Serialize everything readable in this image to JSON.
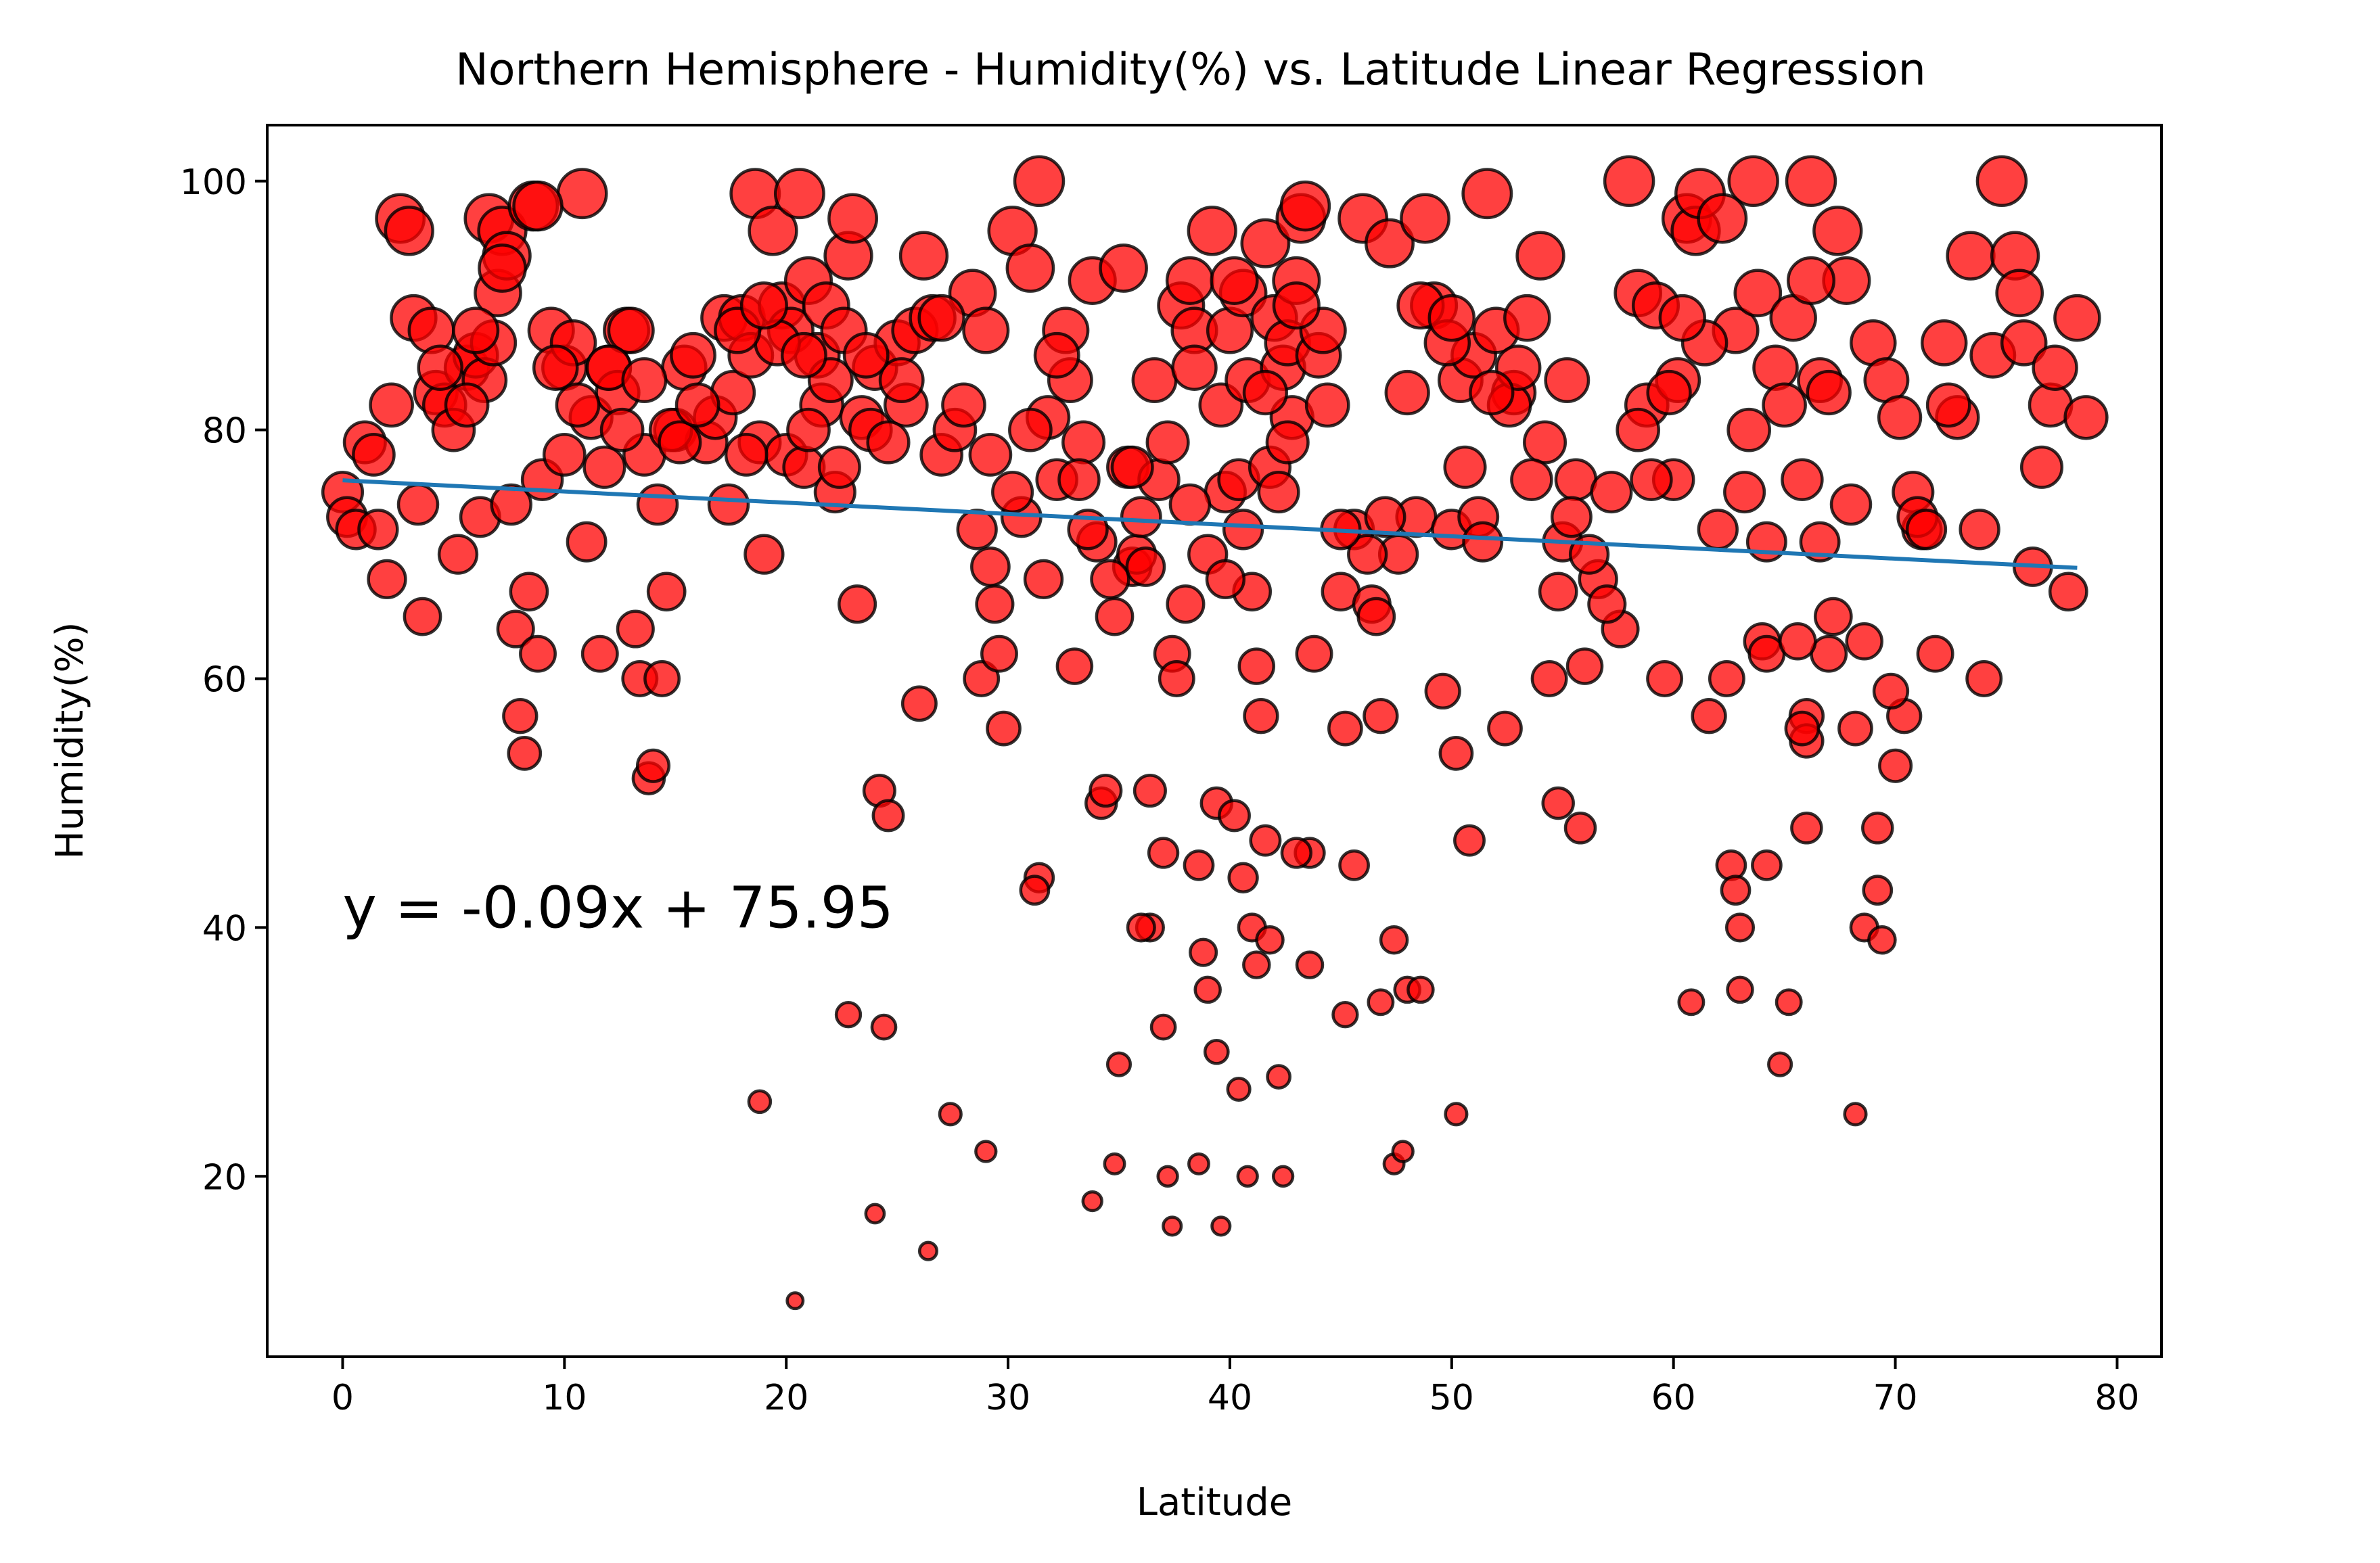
{
  "chart_data": {
    "type": "scatter",
    "title": "Northern Hemisphere - Humidity(%) vs. Latitude Linear Regression",
    "xlabel": "Latitude",
    "ylabel": "Humidity(%)",
    "xlim": [
      -3.4,
      82
    ],
    "ylim": [
      5.5,
      104.5
    ],
    "xticks": [
      0,
      10,
      20,
      30,
      40,
      50,
      60,
      70,
      80
    ],
    "yticks": [
      20,
      40,
      60,
      80,
      100
    ],
    "grid": false,
    "legend": "none",
    "point_style": {
      "fill": "#ff0000",
      "fill_opacity": 0.75,
      "edge": "#000000",
      "size_encoding": "humidity"
    },
    "regression": {
      "slope": -0.09,
      "intercept": 75.95,
      "x_range": [
        0,
        78.2
      ],
      "color": "#1f77b4"
    },
    "annotation": {
      "text": "y = -0.09x + 75.95",
      "x": 0,
      "y": 40,
      "color": "#ff0000"
    },
    "points": [
      [
        0.0,
        75
      ],
      [
        0.2,
        73
      ],
      [
        0.6,
        72
      ],
      [
        1.0,
        79
      ],
      [
        1.4,
        78
      ],
      [
        1.6,
        72
      ],
      [
        2.0,
        68
      ],
      [
        2.2,
        82
      ],
      [
        2.6,
        97
      ],
      [
        3.0,
        96
      ],
      [
        3.2,
        89
      ],
      [
        3.4,
        74
      ],
      [
        3.6,
        65
      ],
      [
        4.0,
        88
      ],
      [
        4.2,
        83
      ],
      [
        4.6,
        82
      ],
      [
        5.0,
        80
      ],
      [
        5.2,
        70
      ],
      [
        5.6,
        85
      ],
      [
        6.0,
        86
      ],
      [
        6.2,
        73
      ],
      [
        6.4,
        84
      ],
      [
        6.6,
        97
      ],
      [
        6.8,
        87
      ],
      [
        7.0,
        91
      ],
      [
        7.2,
        96
      ],
      [
        7.4,
        94
      ],
      [
        7.6,
        74
      ],
      [
        7.8,
        64
      ],
      [
        8.0,
        57
      ],
      [
        8.2,
        54
      ],
      [
        8.4,
        67
      ],
      [
        8.6,
        98
      ],
      [
        8.8,
        62
      ],
      [
        9.0,
        76
      ],
      [
        9.4,
        88
      ],
      [
        10.0,
        85
      ],
      [
        10.4,
        87
      ],
      [
        10.8,
        99
      ],
      [
        11.0,
        71
      ],
      [
        11.2,
        81
      ],
      [
        11.6,
        62
      ],
      [
        11.8,
        77
      ],
      [
        12.0,
        85
      ],
      [
        12.4,
        83
      ],
      [
        12.8,
        88
      ],
      [
        13.0,
        88
      ],
      [
        13.2,
        64
      ],
      [
        13.4,
        60
      ],
      [
        13.6,
        78
      ],
      [
        13.8,
        52
      ],
      [
        14.0,
        53
      ],
      [
        14.2,
        74
      ],
      [
        14.4,
        60
      ],
      [
        14.6,
        67
      ],
      [
        15.0,
        80
      ],
      [
        15.4,
        85
      ],
      [
        15.8,
        86
      ],
      [
        16.4,
        79
      ],
      [
        16.8,
        81
      ],
      [
        17.2,
        89
      ],
      [
        17.4,
        74
      ],
      [
        17.6,
        83
      ],
      [
        18.0,
        89
      ],
      [
        18.4,
        86
      ],
      [
        18.6,
        99
      ],
      [
        18.8,
        79
      ],
      [
        19.0,
        70
      ],
      [
        19.4,
        96
      ],
      [
        19.8,
        90
      ],
      [
        20.0,
        78
      ],
      [
        20.2,
        88
      ],
      [
        20.6,
        99
      ],
      [
        20.8,
        77
      ],
      [
        21.0,
        92
      ],
      [
        21.4,
        86
      ],
      [
        21.6,
        82
      ],
      [
        21.8,
        90
      ],
      [
        22.0,
        84
      ],
      [
        22.2,
        75
      ],
      [
        22.6,
        88
      ],
      [
        22.8,
        94
      ],
      [
        23.0,
        97
      ],
      [
        23.2,
        66
      ],
      [
        23.4,
        81
      ],
      [
        23.8,
        80
      ],
      [
        24.0,
        85
      ],
      [
        24.2,
        51
      ],
      [
        24.6,
        49
      ],
      [
        25.0,
        87
      ],
      [
        25.4,
        82
      ],
      [
        25.8,
        88
      ],
      [
        26.0,
        58
      ],
      [
        26.2,
        94
      ],
      [
        26.6,
        89
      ],
      [
        27.0,
        78
      ],
      [
        27.6,
        80
      ],
      [
        28.0,
        82
      ],
      [
        28.4,
        91
      ],
      [
        28.6,
        72
      ],
      [
        28.8,
        60
      ],
      [
        29.0,
        88
      ],
      [
        29.2,
        69
      ],
      [
        29.4,
        66
      ],
      [
        29.6,
        62
      ],
      [
        29.8,
        56
      ],
      [
        30.2,
        96
      ],
      [
        30.6,
        73
      ],
      [
        31.0,
        93
      ],
      [
        31.4,
        100
      ],
      [
        31.6,
        68
      ],
      [
        31.8,
        81
      ],
      [
        32.2,
        76
      ],
      [
        32.6,
        88
      ],
      [
        32.8,
        84
      ],
      [
        33.0,
        61
      ],
      [
        33.4,
        79
      ],
      [
        33.8,
        92
      ],
      [
        34.0,
        71
      ],
      [
        34.2,
        50
      ],
      [
        34.4,
        51
      ],
      [
        34.8,
        65
      ],
      [
        35.2,
        93
      ],
      [
        35.4,
        77
      ],
      [
        35.6,
        69
      ],
      [
        35.8,
        70
      ],
      [
        36.0,
        73
      ],
      [
        36.4,
        51
      ],
      [
        36.8,
        76
      ],
      [
        37.0,
        46
      ],
      [
        37.2,
        79
      ],
      [
        37.4,
        62
      ],
      [
        37.6,
        60
      ],
      [
        37.8,
        90
      ],
      [
        38.0,
        66
      ],
      [
        38.2,
        92
      ],
      [
        38.4,
        88
      ],
      [
        38.6,
        45
      ],
      [
        38.8,
        38
      ],
      [
        39.0,
        35
      ],
      [
        39.2,
        96
      ],
      [
        39.4,
        50
      ],
      [
        39.6,
        82
      ],
      [
        39.8,
        75
      ],
      [
        40.0,
        88
      ],
      [
        40.2,
        49
      ],
      [
        40.4,
        76
      ],
      [
        40.6,
        91
      ],
      [
        40.8,
        84
      ],
      [
        41.0,
        67
      ],
      [
        41.2,
        61
      ],
      [
        41.4,
        57
      ],
      [
        41.6,
        95
      ],
      [
        41.8,
        77
      ],
      [
        42.0,
        89
      ],
      [
        42.2,
        75
      ],
      [
        42.4,
        85
      ],
      [
        42.6,
        87
      ],
      [
        42.8,
        81
      ],
      [
        43.0,
        92
      ],
      [
        43.2,
        97
      ],
      [
        43.4,
        98
      ],
      [
        43.6,
        46
      ],
      [
        43.8,
        62
      ],
      [
        44.0,
        86
      ],
      [
        44.4,
        82
      ],
      [
        45.0,
        67
      ],
      [
        45.2,
        56
      ],
      [
        45.6,
        72
      ],
      [
        46.0,
        97
      ],
      [
        46.4,
        66
      ],
      [
        46.8,
        57
      ],
      [
        47.2,
        95
      ],
      [
        47.6,
        70
      ],
      [
        48.0,
        83
      ],
      [
        48.4,
        73
      ],
      [
        48.8,
        97
      ],
      [
        49.2,
        90
      ],
      [
        49.6,
        59
      ],
      [
        50.0,
        72
      ],
      [
        50.2,
        54
      ],
      [
        50.4,
        84
      ],
      [
        50.6,
        77
      ],
      [
        51.0,
        86
      ],
      [
        51.2,
        73
      ],
      [
        51.6,
        99
      ],
      [
        52.0,
        88
      ],
      [
        52.4,
        56
      ],
      [
        52.8,
        83
      ],
      [
        53.4,
        89
      ],
      [
        54.0,
        94
      ],
      [
        54.4,
        60
      ],
      [
        54.8,
        67
      ],
      [
        55.2,
        84
      ],
      [
        55.6,
        76
      ],
      [
        56.0,
        61
      ],
      [
        56.6,
        68
      ],
      [
        57.2,
        75
      ],
      [
        57.6,
        64
      ],
      [
        58.0,
        100
      ],
      [
        58.4,
        91
      ],
      [
        58.8,
        82
      ],
      [
        59.2,
        90
      ],
      [
        59.6,
        60
      ],
      [
        60.0,
        76
      ],
      [
        60.2,
        84
      ],
      [
        60.6,
        97
      ],
      [
        61.0,
        96
      ],
      [
        61.2,
        99
      ],
      [
        61.6,
        57
      ],
      [
        62.0,
        72
      ],
      [
        62.4,
        60
      ],
      [
        62.8,
        88
      ],
      [
        63.2,
        75
      ],
      [
        63.6,
        100
      ],
      [
        63.8,
        91
      ],
      [
        64.2,
        45
      ],
      [
        64.6,
        85
      ],
      [
        65.0,
        82
      ],
      [
        65.4,
        89
      ],
      [
        65.8,
        76
      ],
      [
        66.2,
        100
      ],
      [
        66.6,
        71
      ],
      [
        67.0,
        62
      ],
      [
        67.4,
        96
      ],
      [
        67.8,
        92
      ],
      [
        68.2,
        56
      ],
      [
        68.6,
        63
      ],
      [
        69.0,
        87
      ],
      [
        69.2,
        48
      ],
      [
        69.6,
        84
      ],
      [
        70.0,
        53
      ],
      [
        70.4,
        57
      ],
      [
        70.8,
        75
      ],
      [
        71.2,
        72
      ],
      [
        71.8,
        62
      ],
      [
        72.2,
        87
      ],
      [
        72.8,
        81
      ],
      [
        73.4,
        94
      ],
      [
        73.8,
        72
      ],
      [
        74.0,
        60
      ],
      [
        74.4,
        86
      ],
      [
        74.8,
        100
      ],
      [
        75.4,
        94
      ],
      [
        75.6,
        91
      ],
      [
        75.8,
        87
      ],
      [
        76.2,
        69
      ],
      [
        76.6,
        77
      ],
      [
        77.0,
        82
      ],
      [
        77.2,
        85
      ],
      [
        77.8,
        67
      ],
      [
        78.2,
        89
      ],
      [
        78.6,
        81
      ],
      [
        40.6,
        44
      ],
      [
        41.0,
        40
      ],
      [
        41.2,
        37
      ],
      [
        41.6,
        47
      ],
      [
        41.8,
        39
      ],
      [
        42.2,
        28
      ],
      [
        40.4,
        27
      ],
      [
        39.4,
        30
      ],
      [
        38.6,
        21
      ],
      [
        37.4,
        16
      ],
      [
        37.2,
        20
      ],
      [
        36.4,
        40
      ],
      [
        36.0,
        40
      ],
      [
        37.0,
        32
      ],
      [
        35.0,
        29
      ],
      [
        34.8,
        21
      ],
      [
        33.8,
        18
      ],
      [
        31.4,
        44
      ],
      [
        31.2,
        43
      ],
      [
        29.0,
        22
      ],
      [
        27.4,
        25
      ],
      [
        26.4,
        14
      ],
      [
        24.4,
        32
      ],
      [
        24.0,
        17
      ],
      [
        22.8,
        33
      ],
      [
        20.4,
        10
      ],
      [
        18.8,
        26
      ],
      [
        39.6,
        16
      ],
      [
        40.8,
        20
      ],
      [
        42.4,
        20
      ],
      [
        43.0,
        46
      ],
      [
        43.6,
        37
      ],
      [
        45.2,
        33
      ],
      [
        45.6,
        45
      ],
      [
        46.8,
        34
      ],
      [
        47.4,
        39
      ],
      [
        47.4,
        21
      ],
      [
        47.8,
        22
      ],
      [
        48.0,
        35
      ],
      [
        48.6,
        35
      ],
      [
        50.2,
        25
      ],
      [
        50.8,
        47
      ],
      [
        54.8,
        50
      ],
      [
        55.8,
        48
      ],
      [
        60.8,
        34
      ],
      [
        62.6,
        45
      ],
      [
        62.8,
        43
      ],
      [
        63.0,
        40
      ],
      [
        63.0,
        35
      ],
      [
        64.8,
        29
      ],
      [
        65.2,
        34
      ],
      [
        66.0,
        57
      ],
      [
        66.0,
        55
      ],
      [
        65.8,
        56
      ],
      [
        66.0,
        48
      ],
      [
        68.2,
        25
      ],
      [
        68.6,
        40
      ],
      [
        69.2,
        43
      ],
      [
        69.4,
        39
      ],
      [
        14.8,
        80
      ],
      [
        15.2,
        79
      ],
      [
        16.0,
        82
      ],
      [
        6.0,
        88
      ],
      [
        9.6,
        85
      ],
      [
        10.0,
        78
      ],
      [
        10.6,
        82
      ],
      [
        12.0,
        85
      ],
      [
        18.2,
        78
      ],
      [
        19.6,
        87
      ],
      [
        21.0,
        80
      ],
      [
        22.4,
        77
      ],
      [
        24.6,
        79
      ],
      [
        25.2,
        84
      ],
      [
        30.2,
        75
      ],
      [
        32.2,
        86
      ],
      [
        33.6,
        72
      ],
      [
        34.6,
        68
      ],
      [
        35.6,
        77
      ],
      [
        36.6,
        84
      ],
      [
        38.4,
        85
      ],
      [
        39.0,
        70
      ],
      [
        39.8,
        68
      ],
      [
        40.6,
        72
      ],
      [
        42.6,
        79
      ],
      [
        44.2,
        88
      ],
      [
        46.2,
        70
      ],
      [
        47.0,
        73
      ],
      [
        49.8,
        87
      ],
      [
        51.4,
        71
      ],
      [
        52.6,
        82
      ],
      [
        53.0,
        85
      ],
      [
        54.2,
        79
      ],
      [
        55.0,
        71
      ],
      [
        56.2,
        70
      ],
      [
        58.4,
        80
      ],
      [
        59.8,
        83
      ],
      [
        61.4,
        87
      ],
      [
        63.4,
        80
      ],
      [
        64.0,
        63
      ],
      [
        64.2,
        62
      ],
      [
        65.6,
        63
      ],
      [
        66.6,
        84
      ],
      [
        67.0,
        83
      ],
      [
        68.0,
        74
      ],
      [
        69.8,
        59
      ],
      [
        70.2,
        81
      ],
      [
        71.0,
        73
      ],
      [
        4.4,
        85
      ],
      [
        5.6,
        82
      ],
      [
        7.2,
        93
      ],
      [
        8.8,
        98
      ],
      [
        12.6,
        80
      ],
      [
        13.6,
        84
      ],
      [
        17.8,
        88
      ],
      [
        19.0,
        90
      ],
      [
        20.8,
        86
      ],
      [
        23.6,
        86
      ],
      [
        27.0,
        89
      ],
      [
        29.2,
        78
      ],
      [
        31.0,
        80
      ],
      [
        33.2,
        76
      ],
      [
        36.2,
        69
      ],
      [
        38.2,
        74
      ],
      [
        40.2,
        92
      ],
      [
        41.6,
        83
      ],
      [
        43.0,
        90
      ],
      [
        45.0,
        72
      ],
      [
        46.6,
        65
      ],
      [
        48.6,
        90
      ],
      [
        50.0,
        89
      ],
      [
        51.8,
        83
      ],
      [
        53.6,
        76
      ],
      [
        55.4,
        73
      ],
      [
        57.0,
        66
      ],
      [
        59.0,
        76
      ],
      [
        60.4,
        89
      ],
      [
        62.2,
        97
      ],
      [
        64.2,
        71
      ],
      [
        66.2,
        92
      ],
      [
        67.2,
        65
      ],
      [
        71.4,
        72
      ],
      [
        72.4,
        82
      ]
    ]
  }
}
